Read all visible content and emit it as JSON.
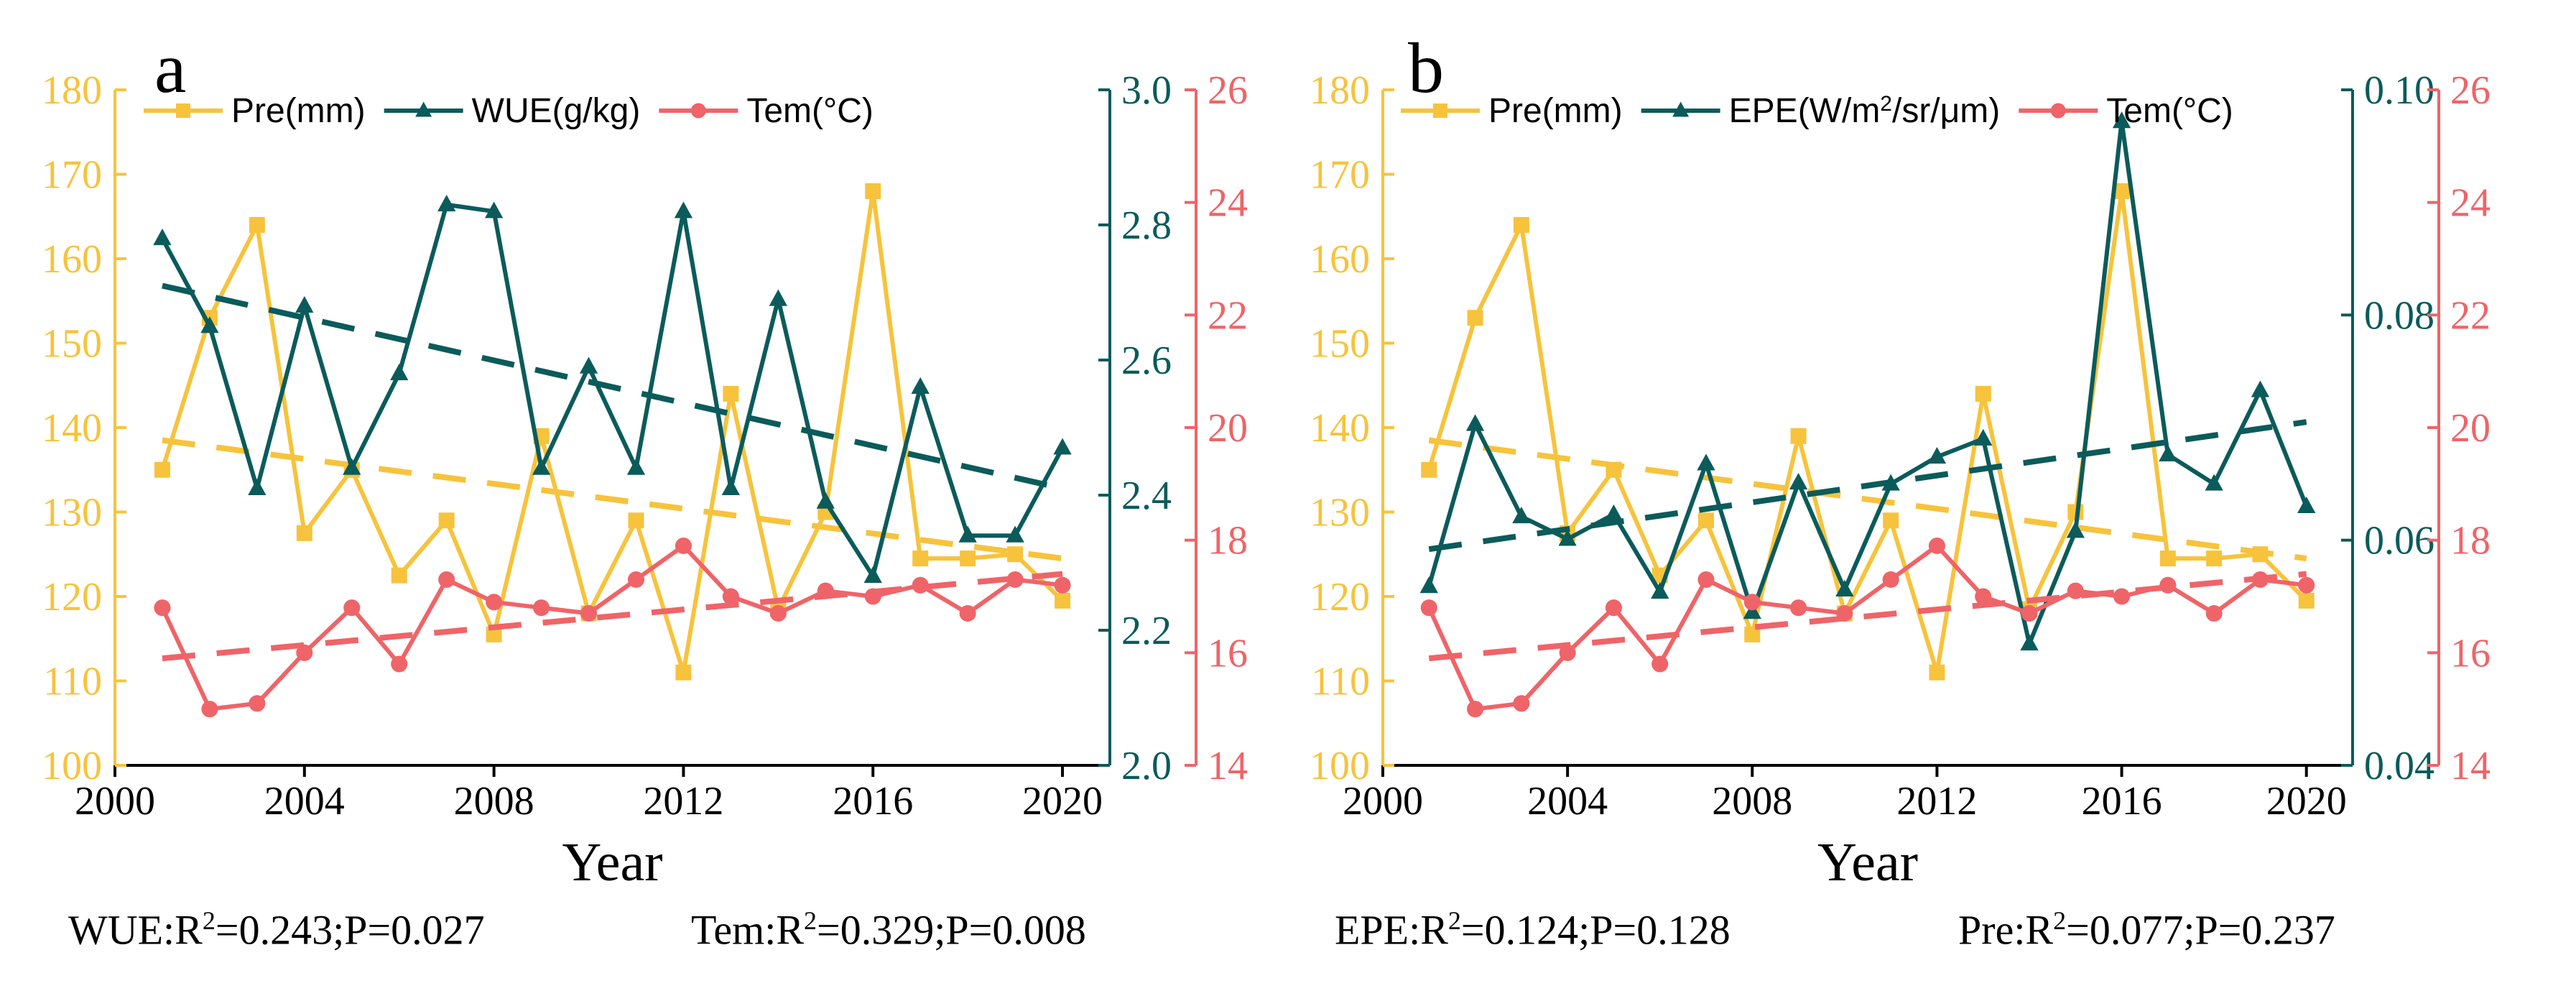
{
  "colors": {
    "pre": "#f7c33c",
    "wue": "#0b5b5b",
    "tem": "#ef6468",
    "axis": "#000000"
  },
  "chart_data": [
    {
      "type": "line",
      "panel_label": "a",
      "xlabel": "Year",
      "x": [
        2001,
        2002,
        2003,
        2004,
        2005,
        2006,
        2007,
        2008,
        2009,
        2010,
        2011,
        2012,
        2013,
        2014,
        2015,
        2016,
        2017,
        2018,
        2019,
        2020
      ],
      "xlim": [
        2000,
        2021
      ],
      "xticks": [
        "2000",
        "2004",
        "2008",
        "2012",
        "2016",
        "2020"
      ],
      "axes": [
        {
          "side": "left",
          "series": "pre",
          "ylim": [
            100,
            180
          ],
          "ticks": [
            "100",
            "110",
            "120",
            "130",
            "140",
            "150",
            "160",
            "170",
            "180"
          ]
        },
        {
          "side": "right",
          "series": "wue",
          "ylim": [
            2.0,
            3.0
          ],
          "ticks": [
            "2.0",
            "2.2",
            "2.4",
            "2.6",
            "2.8",
            "3.0"
          ]
        },
        {
          "side": "right-outer",
          "series": "tem",
          "ylim": [
            14,
            26
          ],
          "ticks": [
            "14",
            "16",
            "18",
            "20",
            "22",
            "24",
            "26"
          ]
        }
      ],
      "series": [
        {
          "key": "pre",
          "name": "Pre(mm)",
          "marker": "square",
          "axis": 0,
          "values": [
            135,
            153,
            164,
            127.5,
            135,
            122.5,
            129,
            115.5,
            139,
            118,
            129,
            111,
            144,
            118.5,
            130,
            168,
            124.5,
            124.5,
            125,
            119.5
          ],
          "trend": [
            138.5,
            124.5
          ]
        },
        {
          "key": "wue",
          "name": "WUE(g/kg)",
          "marker": "triangle",
          "axis": 1,
          "values": [
            2.78,
            2.65,
            2.41,
            2.68,
            2.44,
            2.58,
            2.83,
            2.82,
            2.44,
            2.59,
            2.44,
            2.82,
            2.41,
            2.69,
            2.39,
            2.28,
            2.56,
            2.34,
            2.34,
            2.47
          ],
          "trend": [
            2.71,
            2.41
          ]
        },
        {
          "key": "tem",
          "name": "Tem(°C)",
          "marker": "circle",
          "axis": 2,
          "values": [
            16.8,
            15.0,
            15.1,
            16.0,
            16.8,
            15.8,
            17.3,
            16.9,
            16.8,
            16.7,
            17.3,
            17.9,
            17.0,
            16.7,
            17.1,
            17.0,
            17.2,
            16.7,
            17.3,
            17.2
          ],
          "trend": [
            15.9,
            17.4
          ]
        }
      ],
      "stats": [
        {
          "prefix": "WUE:R",
          "sup": "2",
          "suffix": "=0.243;P=0.027"
        },
        {
          "prefix": "Tem:R",
          "sup": "2",
          "suffix": "=0.329;P=0.008"
        }
      ]
    },
    {
      "type": "line",
      "panel_label": "b",
      "xlabel": "Year",
      "x": [
        2001,
        2002,
        2003,
        2004,
        2005,
        2006,
        2007,
        2008,
        2009,
        2010,
        2011,
        2012,
        2013,
        2014,
        2015,
        2016,
        2017,
        2018,
        2019,
        2020
      ],
      "xlim": [
        2000,
        2021
      ],
      "xticks": [
        "2000",
        "2004",
        "2008",
        "2012",
        "2016",
        "2020"
      ],
      "axes": [
        {
          "side": "left",
          "series": "pre",
          "ylim": [
            100,
            180
          ],
          "ticks": [
            "100",
            "110",
            "120",
            "130",
            "140",
            "150",
            "160",
            "170",
            "180"
          ]
        },
        {
          "side": "right",
          "series": "epe",
          "ylim": [
            0.04,
            0.1
          ],
          "ticks": [
            "0.04",
            "0.06",
            "0.08",
            "0.10"
          ]
        },
        {
          "side": "right-outer",
          "series": "tem",
          "ylim": [
            14,
            26
          ],
          "ticks": [
            "14",
            "16",
            "18",
            "20",
            "22",
            "24",
            "26"
          ]
        }
      ],
      "series": [
        {
          "key": "pre",
          "name": "Pre(mm)",
          "marker": "square",
          "axis": 0,
          "values": [
            135,
            153,
            164,
            127.5,
            135,
            122.5,
            129,
            115.5,
            139,
            118,
            129,
            111,
            144,
            118.5,
            130,
            168,
            124.5,
            124.5,
            125,
            119.5
          ],
          "trend": [
            138.5,
            124.5
          ]
        },
        {
          "key": "epe",
          "name": "EPE(W/m",
          "name_sup": "2",
          "name_suffix": "/sr/μm)",
          "marker": "triangle",
          "axis": 1,
          "values": [
            0.0559,
            0.0703,
            0.0621,
            0.0601,
            0.0623,
            0.0554,
            0.0668,
            0.0536,
            0.0651,
            0.0556,
            0.065,
            0.0674,
            0.069,
            0.0508,
            0.0608,
            0.0972,
            0.0676,
            0.065,
            0.0733,
            0.063
          ],
          "trend": [
            0.0592,
            0.0705
          ]
        },
        {
          "key": "tem",
          "name": "Tem(°C)",
          "marker": "circle",
          "axis": 2,
          "values": [
            16.8,
            15.0,
            15.1,
            16.0,
            16.8,
            15.8,
            17.3,
            16.9,
            16.8,
            16.7,
            17.3,
            17.9,
            17.0,
            16.7,
            17.1,
            17.0,
            17.2,
            16.7,
            17.3,
            17.2
          ],
          "trend": [
            15.9,
            17.4
          ]
        }
      ],
      "stats": [
        {
          "prefix": "EPE:R",
          "sup": "2",
          "suffix": "=0.124;P=0.128"
        },
        {
          "prefix": "Pre:R",
          "sup": "2",
          "suffix": "=0.077;P=0.237"
        }
      ]
    }
  ]
}
